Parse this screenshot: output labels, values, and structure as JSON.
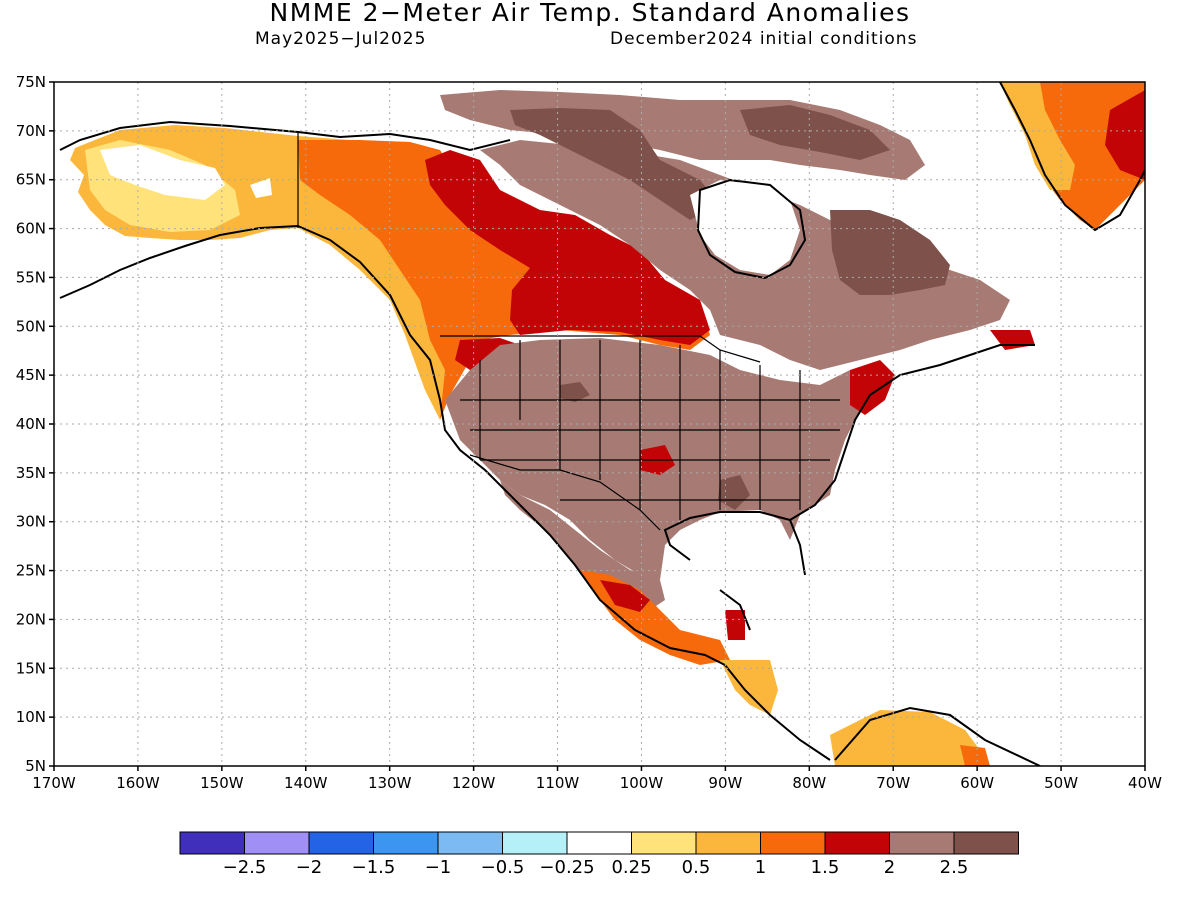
{
  "header": {
    "title": "NMME 2−Meter Air Temp. Standard Anomalies",
    "period": "May2025−Jul2025",
    "init": "December2024 initial conditions"
  },
  "axes": {
    "lat_labels": [
      "75N",
      "70N",
      "65N",
      "60N",
      "55N",
      "50N",
      "45N",
      "40N",
      "35N",
      "30N",
      "25N",
      "20N",
      "15N",
      "10N",
      "5N"
    ],
    "lon_labels": [
      "170W",
      "160W",
      "150W",
      "140W",
      "130W",
      "120W",
      "110W",
      "100W",
      "90W",
      "80W",
      "70W",
      "60W",
      "50W",
      "40W"
    ]
  },
  "colorbar": {
    "colors": [
      "#3f2fba",
      "#a08ff5",
      "#2463e6",
      "#3c95f0",
      "#7cbaf4",
      "#b5eff8",
      "#ffffff",
      "#ffe27a",
      "#fbb73b",
      "#f76a0c",
      "#c30406",
      "#a77b73",
      "#7e524b"
    ],
    "labels": [
      "−2.5",
      "−2",
      "−1.5",
      "−1",
      "−0.5",
      "−0.25",
      "0.25",
      "0.5",
      "1",
      "1.5",
      "2",
      "2.5"
    ]
  },
  "legend_colors": {
    "outline": "#000000",
    "grid": "#aaaaaa"
  }
}
